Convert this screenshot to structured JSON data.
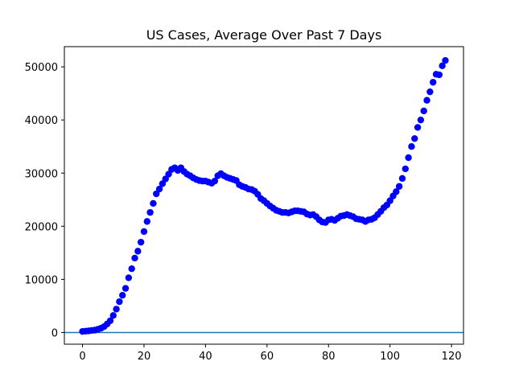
{
  "chart_data": {
    "type": "scatter",
    "title": "US Cases, Average Over Past 7 Days",
    "xlabel": "",
    "ylabel": "",
    "xlim": [
      -5.9,
      123.9
    ],
    "ylim": [
      -2200,
      53800
    ],
    "x_ticks": [
      0,
      20,
      40,
      60,
      80,
      100,
      120
    ],
    "y_ticks": [
      0,
      10000,
      20000,
      30000,
      40000,
      50000
    ],
    "grid": false,
    "legend": "none",
    "marker_color": "#0000ff",
    "reference_line": {
      "y": 0,
      "color": "#1f77b4"
    },
    "series": [
      {
        "x": [
          0,
          1,
          2,
          3,
          4,
          5,
          6,
          7,
          8,
          9,
          10,
          11,
          12,
          13,
          14,
          15,
          16,
          17,
          18,
          19,
          20,
          21,
          22,
          23,
          24,
          25,
          26,
          27,
          28,
          29,
          30,
          31,
          32,
          33,
          34,
          35,
          36,
          37,
          38,
          39,
          40,
          41,
          42,
          43,
          44,
          45,
          46,
          47,
          48,
          49,
          50,
          51,
          52,
          53,
          54,
          55,
          56,
          57,
          58,
          59,
          60,
          61,
          62,
          63,
          64,
          65,
          66,
          67,
          68,
          69,
          70,
          71,
          72,
          73,
          74,
          75,
          76,
          77,
          78,
          79,
          80,
          81,
          82,
          83,
          84,
          85,
          86,
          87,
          88,
          89,
          90,
          91,
          92,
          93,
          94,
          95,
          96,
          97,
          98,
          99,
          100,
          101,
          102,
          103,
          104,
          105,
          106,
          107,
          108,
          109,
          110,
          111,
          112,
          113,
          114,
          115,
          116,
          117,
          118
        ],
        "y": [
          200,
          250,
          300,
          380,
          450,
          600,
          800,
          1100,
          1600,
          2200,
          3200,
          4400,
          5800,
          7000,
          8300,
          10300,
          12000,
          14000,
          15300,
          17000,
          19000,
          20900,
          22600,
          24300,
          26100,
          27000,
          28000,
          28900,
          29800,
          30700,
          31000,
          30500,
          31000,
          30300,
          29800,
          29500,
          29100,
          28800,
          28600,
          28500,
          28500,
          28300,
          28100,
          28500,
          29500,
          29900,
          29500,
          29200,
          29000,
          28800,
          28600,
          27800,
          27500,
          27300,
          27000,
          26900,
          26600,
          26000,
          25200,
          24800,
          24300,
          23800,
          23400,
          23000,
          22800,
          22600,
          22600,
          22500,
          22700,
          22900,
          22900,
          22800,
          22700,
          22300,
          22100,
          22200,
          21800,
          21200,
          20800,
          20700,
          21200,
          21300,
          21100,
          21500,
          21900,
          22000,
          22200,
          22000,
          21800,
          21400,
          21300,
          21200,
          20900,
          21200,
          21300,
          21600,
          22200,
          22800,
          23500,
          24000,
          24800,
          25700,
          26500,
          27500,
          29000,
          30800,
          32900,
          35000,
          36500,
          38600,
          40000,
          41700,
          43700,
          45300,
          47100,
          48600,
          48500,
          50200,
          51200
        ]
      }
    ]
  }
}
